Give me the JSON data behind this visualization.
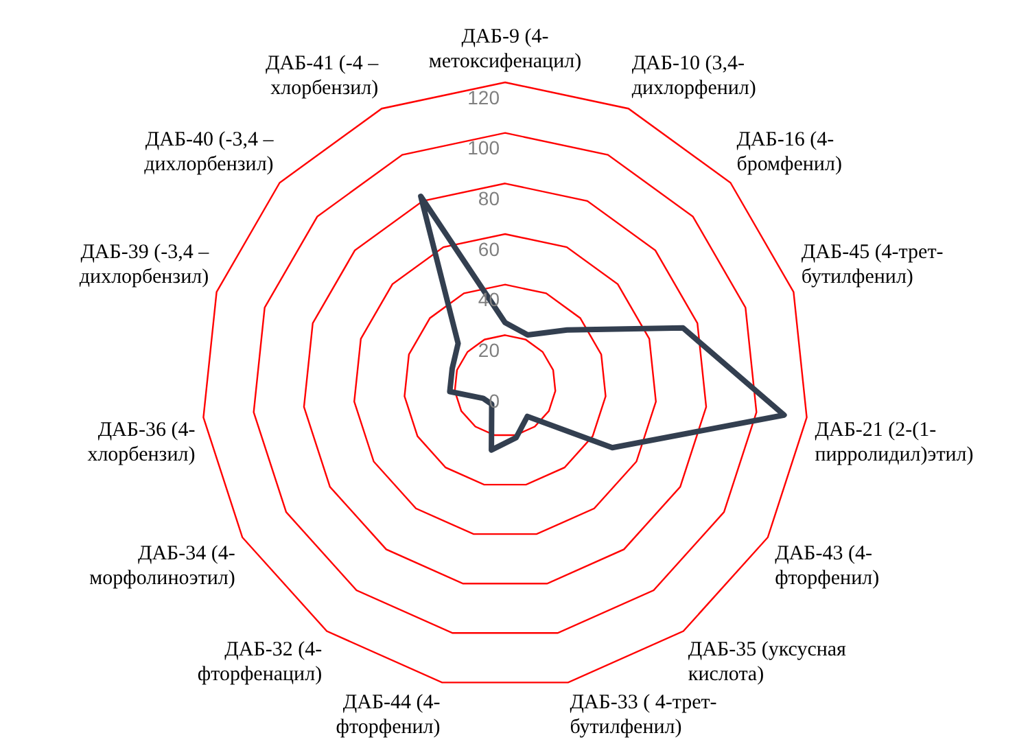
{
  "chart_data": {
    "type": "radar",
    "categories": [
      "ДАБ-9 (4-метоксифенацил)",
      "ДАБ-10 (3,4-дихлорфенил)",
      "ДАБ-16 (4-бромфенил)",
      "ДАБ-45 (4-трет-бутилфенил)",
      "ДАБ-21 (2-(1-пирролидил)этил)",
      "ДАБ-43 (4-фторфенил)",
      "ДАБ-35 (уксусная кислота)",
      "ДАБ-33 ( 4-трет-бутилфенил)",
      "ДАБ-44 (4-фторфенил)",
      "ДАБ-32 (4-фторфенацил)",
      "ДАБ-34 (4-морфолиноэтил)",
      "ДАБ-36 (4-хлорбензил)",
      "ДАБ-39 (-3,4 – дихлорбензил)",
      "ДАБ-40 (-3,4 – дихлорбензил)",
      "ДАБ-41 (-4 – хлорбензил)"
    ],
    "series": [
      {
        "color": "#333f50",
        "values": [
          25,
          22,
          33,
          74,
          111,
          49,
          15,
          21,
          26,
          9,
          10,
          22,
          22,
          25,
          82
        ]
      }
    ],
    "ylim": [
      0,
      120
    ],
    "yticks": [
      0,
      20,
      40,
      60,
      80,
      100,
      120
    ],
    "grid": true,
    "marker": "none",
    "legend": false
  }
}
